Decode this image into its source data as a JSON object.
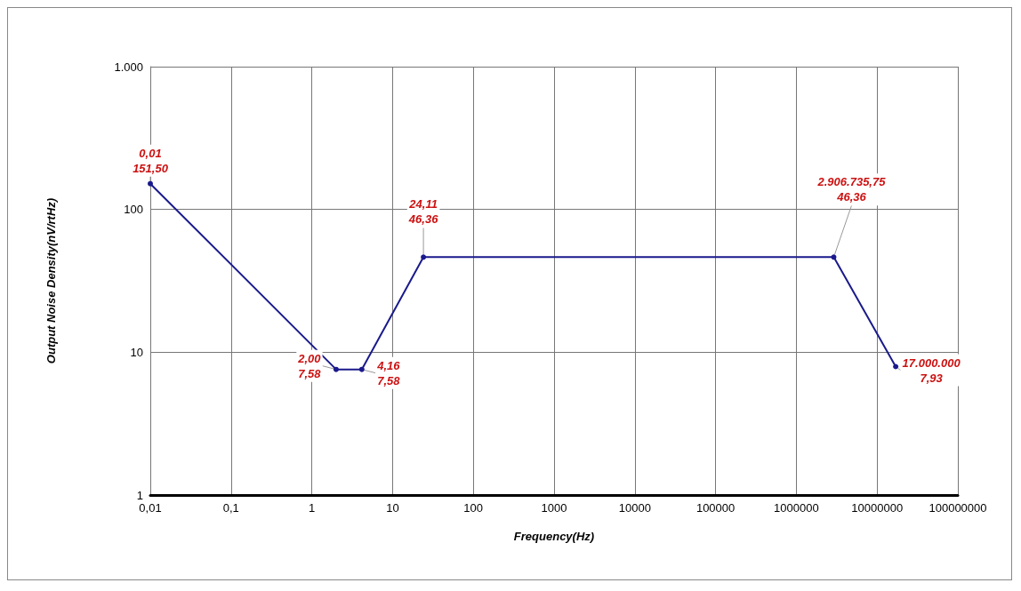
{
  "chart_data": {
    "type": "line",
    "xlabel": "Frequency(Hz)",
    "ylabel": "Output Noise Density(nV/rtHz)",
    "log": "xy",
    "grid": true,
    "marker": "circle",
    "line_style": "solid",
    "xlim": [
      0.01,
      100000000
    ],
    "ylim": [
      1,
      1000
    ],
    "xticks": [
      {
        "value": 0.01,
        "label": "0,01"
      },
      {
        "value": 0.1,
        "label": "0,1"
      },
      1,
      10,
      100,
      1000,
      10000,
      100000,
      1000000,
      10000000,
      100000000
    ],
    "yticks": [
      1,
      10,
      100,
      {
        "value": 1000,
        "label": "1.000"
      }
    ],
    "series": [
      {
        "color": "#1a1a8c",
        "x": [
          0.01,
          2,
          4.16,
          24.11,
          2906735.75,
          17000000
        ],
        "values": [
          151.5,
          7.58,
          7.58,
          46.36,
          46.36,
          7.93
        ],
        "value_labels": [
          "0,01\n151,50",
          "2,00\n7,58",
          "4,16\n7,58",
          "24,11\n46,36",
          "2.906.735,75\n46,36",
          "17.000.000\n7,93"
        ]
      }
    ]
  }
}
